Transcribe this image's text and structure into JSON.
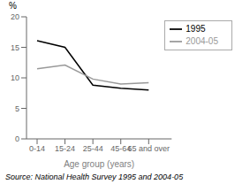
{
  "chart_data": {
    "type": "line",
    "categories": [
      "0-14",
      "15-24",
      "25-44",
      "45-64",
      "65 and over"
    ],
    "series": [
      {
        "name": "1995",
        "color": "#000000",
        "values": [
          16.1,
          15.0,
          8.8,
          8.3,
          8.0
        ]
      },
      {
        "name": "2004-05",
        "color": "#999999",
        "values": [
          11.5,
          12.1,
          9.8,
          9.0,
          9.2
        ]
      }
    ],
    "xlabel": "Age group (years)",
    "ylabel": "%",
    "annotations": [
      "Source: National Health Survey 1995 and 2004-05"
    ],
    "ylim": [
      0,
      20
    ],
    "yticks": [
      0,
      5,
      10,
      15,
      20
    ],
    "grid": false,
    "legend": "upper right"
  }
}
